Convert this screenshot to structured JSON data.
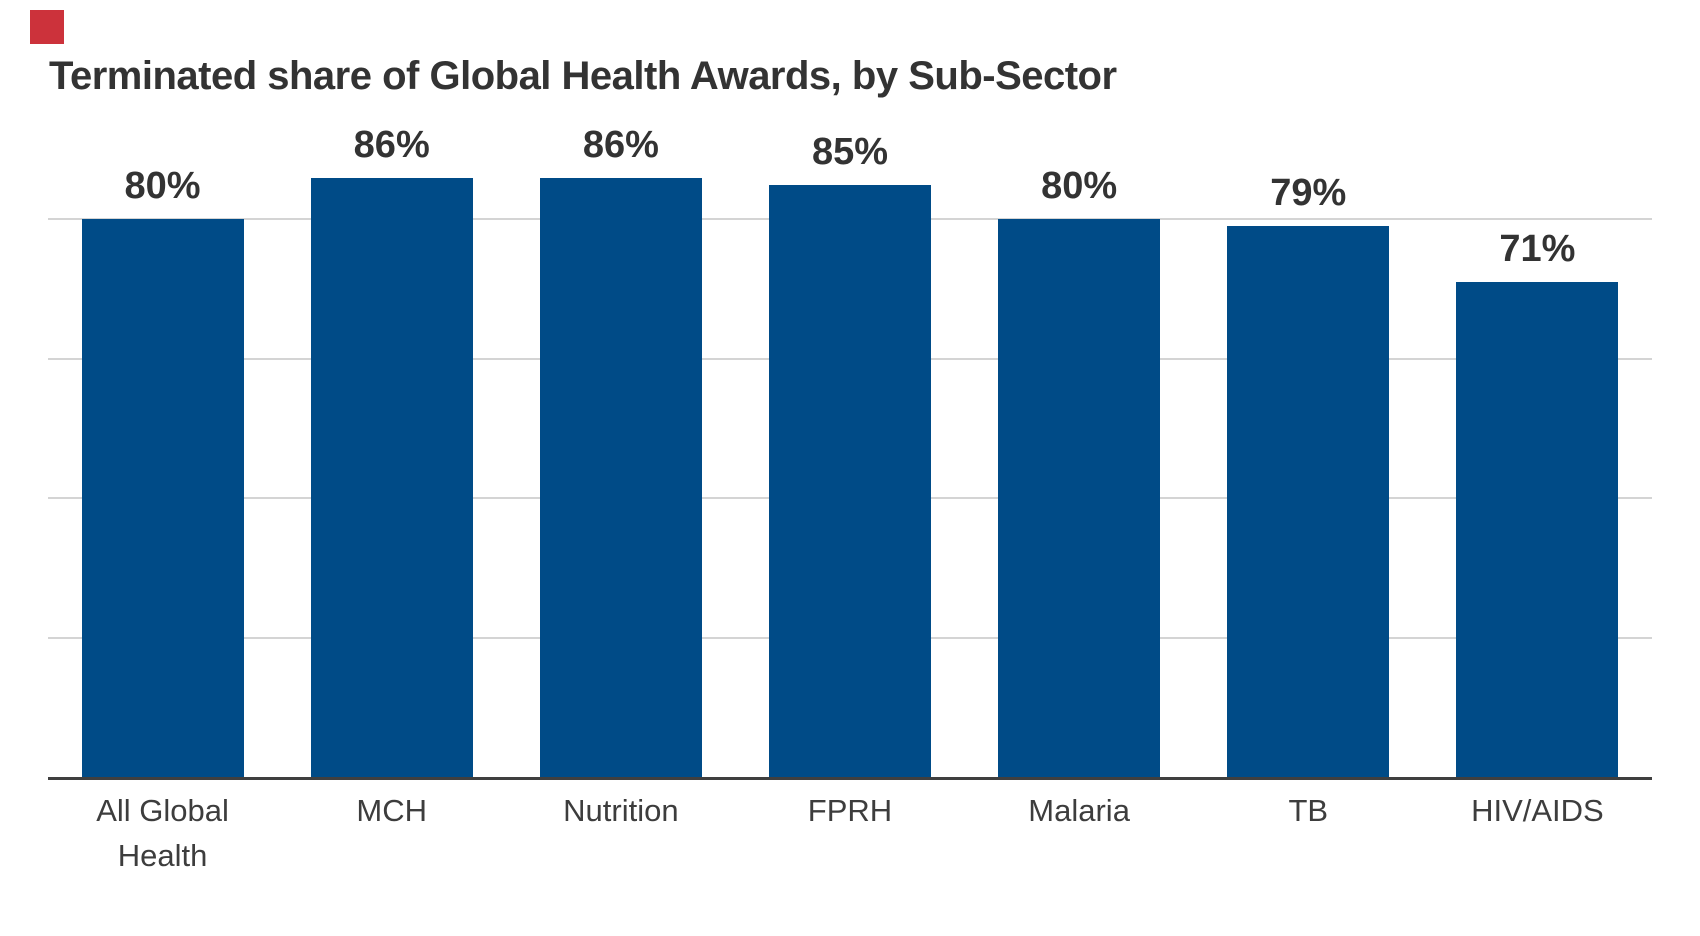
{
  "chart_data": {
    "type": "bar",
    "title": "Terminated share of Global Health Awards, by Sub-Sector",
    "categories": [
      "All Global Health",
      "MCH",
      "Nutrition",
      "FPRH",
      "Malaria",
      "TB",
      "HIV/AIDS"
    ],
    "values": [
      80,
      86,
      86,
      85,
      80,
      79,
      71
    ],
    "data_labels": [
      "80%",
      "86%",
      "86%",
      "85%",
      "80%",
      "79%",
      "71%"
    ],
    "unit": "percent",
    "xlabel": "",
    "ylabel": "",
    "ylim": [
      0,
      100
    ],
    "gridline_values": [
      20,
      40,
      60,
      80
    ],
    "grid_on": true,
    "legend": "none",
    "y_tick_labels_visible": false
  },
  "colors": {
    "bar": "#004b87",
    "title": "#333333",
    "data_label": "#333333",
    "axis_label": "#3d3d3d",
    "gridline": "#d4d4d4",
    "axis_line": "#3f3f3f",
    "logo_red": "#cc323b",
    "background": "#ffffff"
  }
}
